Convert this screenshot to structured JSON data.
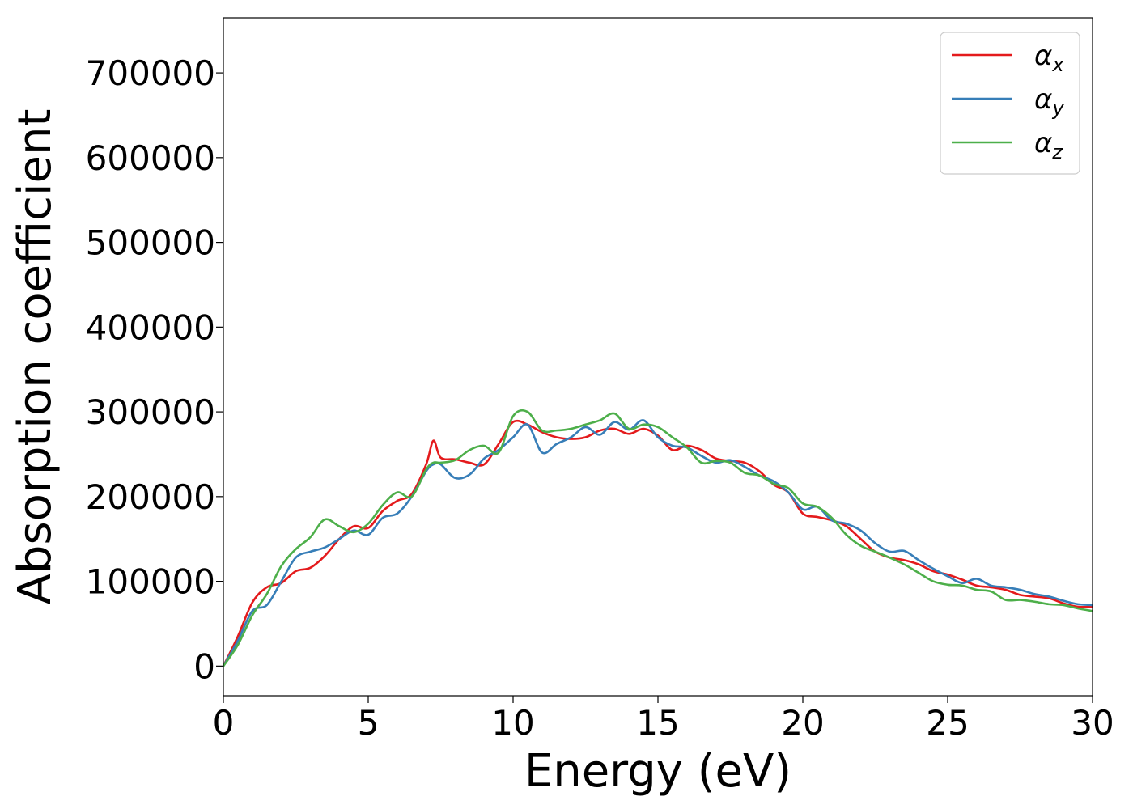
{
  "chart_data": {
    "type": "line",
    "xlabel": "Energy (eV)",
    "ylabel": "Absorption coefficient",
    "xlim": [
      0,
      30
    ],
    "ylim": [
      -35000,
      765000
    ],
    "xticks": [
      0,
      5,
      10,
      15,
      20,
      25,
      30
    ],
    "yticks": [
      0,
      100000,
      200000,
      300000,
      400000,
      500000,
      600000,
      700000
    ],
    "grid": false,
    "legend_position": "top-right",
    "x": [
      0,
      0.5,
      1,
      1.5,
      2,
      2.5,
      3,
      3.5,
      4,
      4.5,
      5,
      5.5,
      6,
      6.5,
      7,
      7.25,
      7.5,
      8,
      8.5,
      9,
      9.5,
      10,
      10.5,
      11,
      11.5,
      12,
      12.5,
      13,
      13.5,
      14,
      14.5,
      15,
      15.5,
      16,
      16.5,
      17,
      17.5,
      18,
      18.5,
      19,
      19.5,
      20,
      20.5,
      21,
      21.5,
      22,
      22.5,
      23,
      23.5,
      24,
      24.5,
      25,
      25.5,
      26,
      26.5,
      27,
      27.5,
      28,
      28.5,
      29,
      29.5,
      30
    ],
    "series": [
      {
        "name": "α",
        "subscript": "x",
        "color": "#e41a1c",
        "values": [
          0,
          35000,
          75000,
          93000,
          98000,
          112000,
          116000,
          130000,
          150000,
          165000,
          163000,
          183000,
          195000,
          203000,
          238000,
          266000,
          246000,
          244000,
          240000,
          238000,
          262000,
          288000,
          285000,
          276000,
          270000,
          268000,
          270000,
          278000,
          280000,
          274000,
          280000,
          272000,
          255000,
          260000,
          255000,
          245000,
          242000,
          240000,
          230000,
          214000,
          205000,
          180000,
          176000,
          172000,
          165000,
          150000,
          135000,
          128000,
          125000,
          120000,
          112000,
          108000,
          102000,
          95000,
          93000,
          90000,
          84000,
          82000,
          80000,
          74000,
          70000,
          70000
        ]
      },
      {
        "name": "α",
        "subscript": "y",
        "color": "#377eb8",
        "values": [
          0,
          30000,
          65000,
          72000,
          100000,
          128000,
          135000,
          140000,
          150000,
          160000,
          155000,
          175000,
          180000,
          200000,
          230000,
          238000,
          238000,
          222000,
          226000,
          245000,
          255000,
          270000,
          285000,
          252000,
          262000,
          270000,
          282000,
          273000,
          288000,
          279000,
          290000,
          270000,
          260000,
          258000,
          248000,
          240000,
          243000,
          235000,
          225000,
          218000,
          205000,
          185000,
          188000,
          172000,
          168000,
          160000,
          145000,
          135000,
          136000,
          125000,
          115000,
          106000,
          98000,
          103000,
          95000,
          93000,
          90000,
          85000,
          82000,
          77000,
          73000,
          72000
        ]
      },
      {
        "name": "α",
        "subscript": "z",
        "color": "#4daf4a",
        "values": [
          0,
          25000,
          60000,
          85000,
          118000,
          138000,
          152000,
          173000,
          165000,
          158000,
          168000,
          190000,
          205000,
          200000,
          232000,
          240000,
          240000,
          243000,
          255000,
          260000,
          252000,
          295000,
          300000,
          278000,
          278000,
          280000,
          285000,
          290000,
          298000,
          280000,
          285000,
          282000,
          270000,
          258000,
          240000,
          242000,
          240000,
          228000,
          225000,
          215000,
          210000,
          192000,
          188000,
          175000,
          155000,
          142000,
          135000,
          128000,
          120000,
          110000,
          100000,
          96000,
          95000,
          90000,
          88000,
          78000,
          78000,
          76000,
          73000,
          72000,
          68000,
          65000
        ]
      }
    ]
  }
}
